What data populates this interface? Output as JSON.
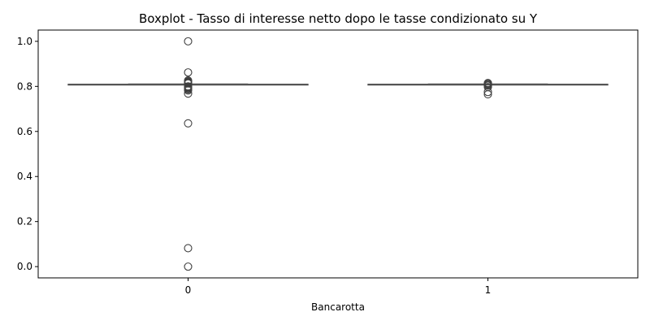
{
  "chart_data": {
    "type": "boxplot",
    "title": "Boxplot - Tasso di interesse netto dopo le tasse condizionato su Y",
    "xlabel": "Bancarotta",
    "ylabel": "",
    "categories": [
      "0",
      "1"
    ],
    "ylim": [
      -0.05,
      1.05
    ],
    "yticks": [
      "0.0",
      "0.2",
      "0.4",
      "0.6",
      "0.8",
      "1.0"
    ],
    "grid": false,
    "colors": {
      "box": "#3b75af",
      "line": "#555555",
      "outlier_edge": "#3f3f3f"
    },
    "boxes": [
      {
        "category": "0",
        "q1": 0.8092,
        "median": 0.8094,
        "q3": 0.8096,
        "whisker_low": 0.8085,
        "whisker_high": 0.8105,
        "outliers": [
          1.0,
          0.862,
          0.826,
          0.823,
          0.82,
          0.818,
          0.815,
          0.813,
          0.8,
          0.797,
          0.793,
          0.79,
          0.787,
          0.782,
          0.768,
          0.636,
          0.082,
          0.0
        ]
      },
      {
        "category": "1",
        "q1": 0.8092,
        "median": 0.8094,
        "q3": 0.8096,
        "whisker_low": 0.8085,
        "whisker_high": 0.8105,
        "outliers": [
          0.815,
          0.812,
          0.81,
          0.806,
          0.803,
          0.797,
          0.775,
          0.765
        ]
      }
    ]
  }
}
